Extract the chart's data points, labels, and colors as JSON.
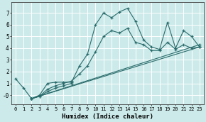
{
  "xlabel": "Humidex (Indice chaleur)",
  "bg_color": "#cceaea",
  "grid_color": "#ffffff",
  "line_color": "#2a6b6b",
  "xlim": [
    -0.5,
    23.5
  ],
  "ylim": [
    -0.8,
    7.9
  ],
  "xticks": [
    0,
    1,
    2,
    3,
    4,
    5,
    6,
    7,
    8,
    9,
    10,
    11,
    12,
    13,
    14,
    15,
    16,
    17,
    18,
    19,
    20,
    21,
    22,
    23
  ],
  "yticks": [
    0,
    1,
    2,
    3,
    4,
    5,
    6,
    7
  ],
  "ytick_labels": [
    "-0",
    "1",
    "2",
    "3",
    "4",
    "5",
    "6",
    "7"
  ],
  "series": [
    {
      "x": [
        0,
        1,
        2,
        3,
        4,
        5,
        6,
        7,
        8,
        9,
        10,
        11,
        12,
        13,
        14,
        15,
        16,
        17,
        18,
        19,
        20,
        21,
        22,
        23
      ],
      "y": [
        1.4,
        0.6,
        -0.3,
        0.0,
        1.0,
        1.1,
        1.1,
        1.1,
        2.5,
        3.5,
        6.0,
        7.0,
        6.6,
        7.1,
        7.4,
        6.3,
        4.7,
        4.1,
        3.9,
        6.2,
        4.0,
        5.5,
        5.0,
        4.1
      ]
    },
    {
      "x": [
        2,
        3,
        4,
        5,
        6,
        7,
        8,
        9,
        10,
        11,
        12,
        13,
        14,
        15,
        16,
        17,
        18,
        19,
        20,
        21,
        22,
        23
      ],
      "y": [
        -0.3,
        -0.1,
        0.5,
        0.8,
        1.0,
        1.2,
        1.8,
        2.5,
        3.7,
        5.0,
        5.5,
        5.3,
        5.7,
        4.5,
        4.3,
        3.8,
        3.8,
        4.5,
        3.9,
        4.3,
        4.0,
        4.1
      ]
    },
    {
      "x": [
        2,
        23
      ],
      "y": [
        -0.3,
        4.1
      ]
    },
    {
      "x": [
        2,
        23
      ],
      "y": [
        -0.3,
        4.3
      ]
    },
    {
      "x": [
        2,
        3,
        4,
        5,
        6,
        7
      ],
      "y": [
        -0.3,
        -0.1,
        0.3,
        0.6,
        0.8,
        1.0
      ]
    }
  ]
}
